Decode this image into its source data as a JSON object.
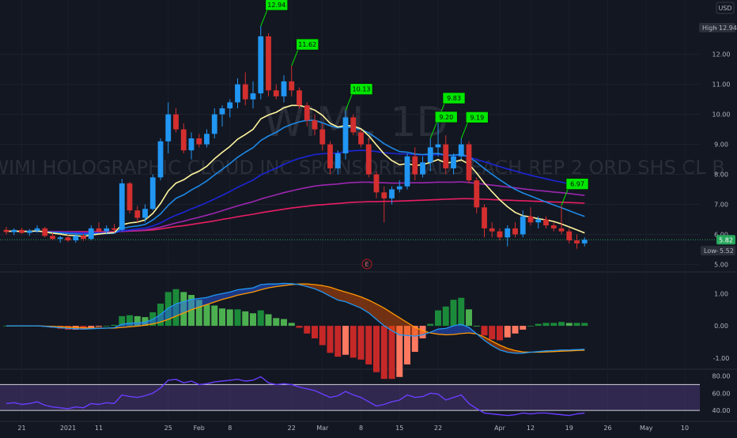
{
  "symbol": "WIMI, 1D",
  "description": "WIMI HOLOGRAPHIC CLOUD INC SPONSORED ADS EACH REP 2 ORD SHS CL B",
  "currency": "USD",
  "high_badge": {
    "label": "High",
    "value": "12.94"
  },
  "low_badge": {
    "label": "Low",
    "value": "5.52"
  },
  "last_price": "5.82",
  "earnings_marker": "E",
  "colors": {
    "background": "#131722",
    "bull": "#2196f3",
    "bear": "#d32f2f",
    "ema_fast": "#fff59d",
    "ema_mid": "#1e88e5",
    "ema_slow": "#1c26d8",
    "ma_purple": "#9c27b0",
    "ma_pink": "#e91e63",
    "label_bg": "#00e600",
    "rsi_line": "#6a3dff",
    "macd_line": "#2196f3",
    "signal_line": "#ff9800"
  },
  "chart_data": [
    {
      "type": "candlestick",
      "title": "",
      "ylim": [
        4.8,
        13.6
      ],
      "y_ticks": [
        "5.00",
        "6.00",
        "7.00",
        "8.00",
        "9.00",
        "10.00",
        "11.00",
        "12.00"
      ],
      "x_ticks": [
        {
          "label": "21",
          "i": 2
        },
        {
          "label": "2021",
          "i": 8
        },
        {
          "label": "11",
          "i": 12
        },
        {
          "label": "25",
          "i": 21
        },
        {
          "label": "Feb",
          "i": 25
        },
        {
          "label": "8",
          "i": 29
        },
        {
          "label": "22",
          "i": 37
        },
        {
          "label": "Mar",
          "i": 41
        },
        {
          "label": "8",
          "i": 46
        },
        {
          "label": "15",
          "i": 51
        },
        {
          "label": "22",
          "i": 56
        },
        {
          "label": "Apr",
          "i": 64
        },
        {
          "label": "12",
          "i": 68
        },
        {
          "label": "19",
          "i": 73
        },
        {
          "label": "26",
          "i": 78
        },
        {
          "label": "May",
          "i": 83
        },
        {
          "label": "10",
          "i": 88
        }
      ],
      "candles": [
        [
          6.15,
          6.25,
          6.0,
          6.08
        ],
        [
          6.08,
          6.2,
          5.98,
          6.15
        ],
        [
          6.15,
          6.22,
          6.02,
          6.05
        ],
        [
          6.05,
          6.18,
          5.95,
          6.12
        ],
        [
          6.12,
          6.3,
          6.05,
          6.2
        ],
        [
          6.2,
          6.25,
          5.9,
          5.95
        ],
        [
          5.95,
          6.05,
          5.8,
          5.85
        ],
        [
          5.85,
          5.95,
          5.72,
          5.9
        ],
        [
          5.9,
          5.98,
          5.75,
          5.8
        ],
        [
          5.8,
          6.0,
          5.72,
          5.95
        ],
        [
          5.95,
          6.02,
          5.78,
          5.85
        ],
        [
          5.85,
          6.3,
          5.8,
          6.2
        ],
        [
          6.2,
          6.4,
          6.05,
          6.1
        ],
        [
          6.1,
          6.3,
          6.0,
          6.2
        ],
        [
          6.2,
          6.35,
          6.05,
          6.15
        ],
        [
          6.15,
          7.85,
          6.1,
          7.7
        ],
        [
          7.7,
          7.75,
          6.7,
          6.8
        ],
        [
          6.8,
          6.95,
          6.4,
          6.55
        ],
        [
          6.55,
          7.0,
          6.4,
          6.85
        ],
        [
          6.85,
          8.0,
          6.8,
          7.9
        ],
        [
          7.9,
          9.2,
          7.8,
          9.1
        ],
        [
          9.1,
          10.4,
          8.7,
          10.0
        ],
        [
          10.0,
          10.2,
          9.4,
          9.5
        ],
        [
          9.5,
          9.7,
          8.7,
          8.8
        ],
        [
          8.8,
          9.4,
          8.5,
          9.2
        ],
        [
          9.2,
          9.35,
          8.9,
          9.0
        ],
        [
          9.0,
          9.5,
          8.9,
          9.35
        ],
        [
          9.35,
          10.2,
          9.2,
          10.0
        ],
        [
          10.0,
          10.3,
          9.6,
          10.2
        ],
        [
          10.2,
          10.5,
          9.9,
          10.4
        ],
        [
          10.4,
          11.2,
          10.2,
          11.0
        ],
        [
          11.0,
          11.4,
          10.3,
          10.5
        ],
        [
          10.5,
          11.1,
          10.2,
          10.7
        ],
        [
          10.7,
          12.94,
          10.5,
          12.6
        ],
        [
          12.6,
          12.7,
          10.6,
          10.8
        ],
        [
          10.8,
          11.0,
          10.5,
          10.6
        ],
        [
          10.6,
          11.3,
          10.4,
          11.1
        ],
        [
          11.1,
          11.62,
          10.6,
          10.8
        ],
        [
          10.8,
          10.9,
          10.2,
          10.3
        ],
        [
          10.3,
          10.4,
          9.6,
          9.8
        ],
        [
          9.8,
          10.0,
          9.3,
          9.5
        ],
        [
          9.5,
          9.7,
          8.8,
          9.0
        ],
        [
          9.0,
          9.1,
          8.0,
          8.2
        ],
        [
          8.2,
          8.8,
          8.0,
          8.7
        ],
        [
          8.7,
          10.13,
          8.5,
          9.9
        ],
        [
          9.9,
          10.0,
          9.3,
          9.4
        ],
        [
          9.4,
          9.5,
          8.9,
          9.0
        ],
        [
          9.0,
          9.2,
          7.9,
          8.0
        ],
        [
          8.0,
          8.1,
          7.2,
          7.4
        ],
        [
          7.4,
          7.6,
          6.4,
          7.2
        ],
        [
          7.2,
          7.6,
          7.0,
          7.5
        ],
        [
          7.5,
          7.8,
          7.4,
          7.6
        ],
        [
          7.6,
          8.7,
          7.5,
          8.6
        ],
        [
          8.6,
          8.9,
          7.8,
          8.0
        ],
        [
          8.0,
          8.6,
          7.9,
          8.4
        ],
        [
          8.4,
          9.2,
          8.1,
          8.9
        ],
        [
          8.9,
          9.83,
          8.6,
          9.0
        ],
        [
          9.0,
          9.3,
          8.0,
          8.2
        ],
        [
          8.2,
          8.7,
          8.0,
          8.6
        ],
        [
          8.6,
          9.19,
          8.5,
          9.0
        ],
        [
          9.0,
          9.1,
          7.7,
          7.8
        ],
        [
          7.8,
          7.9,
          6.7,
          6.9
        ],
        [
          6.9,
          7.0,
          5.9,
          6.2
        ],
        [
          6.2,
          6.4,
          5.9,
          6.1
        ],
        [
          6.1,
          6.2,
          5.8,
          5.9
        ],
        [
          5.9,
          6.3,
          5.6,
          6.2
        ],
        [
          6.2,
          6.4,
          5.9,
          6.0
        ],
        [
          6.0,
          6.8,
          5.9,
          6.6
        ],
        [
          6.6,
          6.9,
          6.3,
          6.4
        ],
        [
          6.4,
          6.6,
          6.2,
          6.5
        ],
        [
          6.5,
          6.6,
          6.2,
          6.3
        ],
        [
          6.3,
          6.4,
          6.1,
          6.2
        ],
        [
          6.2,
          6.97,
          6.0,
          6.1
        ],
        [
          6.1,
          6.2,
          5.7,
          5.8
        ],
        [
          5.8,
          6.0,
          5.52,
          5.7
        ],
        [
          5.7,
          5.9,
          5.6,
          5.82
        ]
      ],
      "ema_fast": [
        6.1,
        6.11,
        6.1,
        6.1,
        6.12,
        6.08,
        6.04,
        6.01,
        5.97,
        5.96,
        5.93,
        5.98,
        6.01,
        6.04,
        6.06,
        6.32,
        6.38,
        6.41,
        6.48,
        6.7,
        7.03,
        7.45,
        7.71,
        7.82,
        7.99,
        8.11,
        8.27,
        8.52,
        8.73,
        8.93,
        9.17,
        9.33,
        9.5,
        9.85,
        9.98,
        10.07,
        10.22,
        10.3,
        10.3,
        10.23,
        10.14,
        9.97,
        9.7,
        9.58,
        9.63,
        9.61,
        9.52,
        9.29,
        8.98,
        8.68,
        8.46,
        8.32,
        8.36,
        8.3,
        8.32,
        8.4,
        8.49,
        8.38,
        8.41,
        8.48,
        8.34,
        8.04,
        7.71,
        7.42,
        7.15,
        6.92,
        6.73,
        6.62,
        6.58,
        6.52,
        6.48,
        6.43,
        6.35,
        6.25,
        6.15,
        6.05
      ],
      "ema_mid": [
        6.1,
        6.1,
        6.1,
        6.1,
        6.11,
        6.09,
        6.07,
        6.05,
        6.03,
        6.02,
        6.0,
        6.01,
        6.02,
        6.03,
        6.04,
        6.2,
        6.25,
        6.28,
        6.33,
        6.48,
        6.68,
        6.97,
        7.2,
        7.32,
        7.48,
        7.62,
        7.78,
        7.98,
        8.17,
        8.36,
        8.57,
        8.74,
        8.89,
        9.13,
        9.28,
        9.4,
        9.56,
        9.67,
        9.75,
        9.8,
        9.8,
        9.72,
        9.62,
        9.55,
        9.58,
        9.55,
        9.5,
        9.38,
        9.21,
        9.02,
        8.88,
        8.76,
        8.74,
        8.68,
        8.66,
        8.68,
        8.7,
        8.64,
        8.64,
        8.67,
        8.58,
        8.4,
        8.19,
        8.0,
        7.82,
        7.65,
        7.5,
        7.38,
        7.28,
        7.18,
        7.08,
        6.98,
        6.89,
        6.79,
        6.69,
        6.6
      ],
      "ema_slow": [
        6.1,
        6.1,
        6.1,
        6.1,
        6.1,
        6.09,
        6.08,
        6.07,
        6.06,
        6.05,
        6.04,
        6.04,
        6.05,
        6.05,
        6.05,
        6.12,
        6.15,
        6.18,
        6.21,
        6.28,
        6.38,
        6.52,
        6.64,
        6.74,
        6.85,
        6.95,
        7.06,
        7.18,
        7.3,
        7.43,
        7.57,
        7.69,
        7.81,
        7.98,
        8.1,
        8.21,
        8.33,
        8.44,
        8.53,
        8.6,
        8.66,
        8.69,
        8.7,
        8.71,
        8.76,
        8.79,
        8.8,
        8.79,
        8.76,
        8.72,
        8.7,
        8.68,
        8.68,
        8.66,
        8.65,
        8.65,
        8.66,
        8.64,
        8.63,
        8.63,
        8.58,
        8.5,
        8.42,
        8.34,
        8.26,
        8.18,
        8.11,
        8.04,
        7.97,
        7.91,
        7.85,
        7.79,
        7.74,
        7.68,
        7.62,
        7.56
      ],
      "ma_purple": [
        6.1,
        6.1,
        6.1,
        6.1,
        6.1,
        6.1,
        6.09,
        6.09,
        6.08,
        6.08,
        6.07,
        6.07,
        6.07,
        6.07,
        6.07,
        6.1,
        6.12,
        6.13,
        6.15,
        6.19,
        6.24,
        6.31,
        6.38,
        6.44,
        6.51,
        6.57,
        6.64,
        6.71,
        6.79,
        6.87,
        6.95,
        7.02,
        7.09,
        7.18,
        7.25,
        7.32,
        7.39,
        7.45,
        7.51,
        7.56,
        7.61,
        7.64,
        7.66,
        7.68,
        7.71,
        7.73,
        7.74,
        7.74,
        7.73,
        7.72,
        7.71,
        7.71,
        7.72,
        7.72,
        7.72,
        7.73,
        7.74,
        7.74,
        7.74,
        7.75,
        7.73,
        7.7,
        7.67,
        7.64,
        7.61,
        7.58,
        7.55,
        7.52,
        7.49,
        7.46,
        7.44,
        7.41,
        7.39,
        7.36,
        7.33,
        7.3
      ],
      "ma_pink": [
        6.1,
        6.1,
        6.1,
        6.1,
        6.1,
        6.1,
        6.1,
        6.09,
        6.09,
        6.09,
        6.09,
        6.09,
        6.09,
        6.09,
        6.09,
        6.1,
        6.11,
        6.12,
        6.13,
        6.15,
        6.18,
        6.22,
        6.26,
        6.29,
        6.33,
        6.37,
        6.41,
        6.45,
        6.5,
        6.54,
        6.59,
        6.63,
        6.67,
        6.72,
        6.76,
        6.8,
        6.84,
        6.88,
        6.91,
        6.94,
        6.97,
        6.99,
        7.01,
        7.03,
        7.05,
        7.07,
        7.08,
        7.09,
        7.09,
        7.1,
        7.1,
        7.11,
        7.12,
        7.13,
        7.14,
        7.15,
        7.16,
        7.17,
        7.18,
        7.19,
        7.19,
        7.18,
        7.17,
        7.16,
        7.15,
        7.14,
        7.13,
        7.12,
        7.11,
        7.1,
        7.09,
        7.08,
        7.07,
        7.06,
        7.05,
        7.04
      ],
      "callouts": [
        {
          "label": "12.94",
          "i": 33,
          "value": 12.94
        },
        {
          "label": "11.62",
          "i": 37,
          "value": 11.62
        },
        {
          "label": "10.13",
          "i": 44,
          "value": 10.13
        },
        {
          "label": "9.83",
          "i": 56,
          "value": 9.83
        },
        {
          "label": "9.20",
          "i": 55,
          "value": 9.2
        },
        {
          "label": "9.19",
          "i": 59,
          "value": 9.19
        },
        {
          "label": "6.97",
          "i": 72,
          "value": 6.97
        }
      ],
      "current_price": 5.82
    },
    {
      "type": "macd",
      "ylim": [
        -1.3,
        1.6
      ],
      "y_ticks": [
        "1.00",
        "0.00",
        "-1.00"
      ],
      "macd": [
        0,
        0,
        0,
        0,
        0,
        -0.02,
        -0.04,
        -0.06,
        -0.08,
        -0.09,
        -0.1,
        -0.09,
        -0.08,
        -0.07,
        -0.06,
        0.05,
        0.08,
        0.09,
        0.11,
        0.2,
        0.35,
        0.55,
        0.68,
        0.75,
        0.82,
        0.85,
        0.88,
        0.95,
        1.0,
        1.05,
        1.12,
        1.15,
        1.18,
        1.28,
        1.3,
        1.3,
        1.32,
        1.31,
        1.28,
        1.22,
        1.15,
        1.05,
        0.92,
        0.8,
        0.75,
        0.65,
        0.55,
        0.4,
        0.2,
        0.0,
        -0.15,
        -0.28,
        -0.3,
        -0.32,
        -0.28,
        -0.2,
        -0.1,
        -0.08,
        0.0,
        0.05,
        -0.05,
        -0.25,
        -0.45,
        -0.62,
        -0.75,
        -0.82,
        -0.85,
        -0.85,
        -0.82,
        -0.8,
        -0.78,
        -0.77,
        -0.75,
        -0.75,
        -0.74,
        -0.73
      ],
      "signal": [
        0,
        0,
        0,
        0,
        0,
        -0.01,
        -0.02,
        -0.03,
        -0.04,
        -0.05,
        -0.06,
        -0.07,
        -0.07,
        -0.07,
        -0.07,
        -0.05,
        -0.03,
        -0.01,
        0.02,
        0.06,
        0.12,
        0.2,
        0.3,
        0.4,
        0.5,
        0.58,
        0.66,
        0.74,
        0.82,
        0.88,
        0.95,
        1.0,
        1.05,
        1.12,
        1.18,
        1.22,
        1.25,
        1.28,
        1.3,
        1.3,
        1.28,
        1.25,
        1.2,
        1.12,
        1.05,
        0.98,
        0.9,
        0.8,
        0.68,
        0.55,
        0.4,
        0.25,
        0.1,
        -0.05,
        -0.15,
        -0.22,
        -0.26,
        -0.28,
        -0.27,
        -0.24,
        -0.22,
        -0.25,
        -0.35,
        -0.48,
        -0.6,
        -0.7,
        -0.77,
        -0.81,
        -0.82,
        -0.82,
        -0.81,
        -0.8,
        -0.79,
        -0.78,
        -0.77,
        -0.76
      ]
    },
    {
      "type": "rsi",
      "ylim": [
        30,
        85
      ],
      "y_ticks": [
        "80.00",
        "60.00",
        "40.00"
      ],
      "band": [
        40,
        70
      ],
      "values": [
        48,
        49,
        47,
        48,
        50,
        46,
        44,
        43,
        42,
        44,
        43,
        48,
        47,
        49,
        48,
        58,
        56,
        55,
        57,
        60,
        66,
        75,
        76,
        72,
        74,
        70,
        71,
        73,
        74,
        75,
        76,
        74,
        75,
        79,
        72,
        70,
        71,
        70,
        67,
        65,
        63,
        59,
        55,
        57,
        62,
        58,
        55,
        50,
        45,
        47,
        50,
        52,
        58,
        55,
        56,
        60,
        59,
        52,
        55,
        58,
        48,
        42,
        37,
        36,
        35,
        34,
        35,
        37,
        36,
        37,
        37,
        36,
        35,
        34,
        36,
        37
      ]
    }
  ]
}
